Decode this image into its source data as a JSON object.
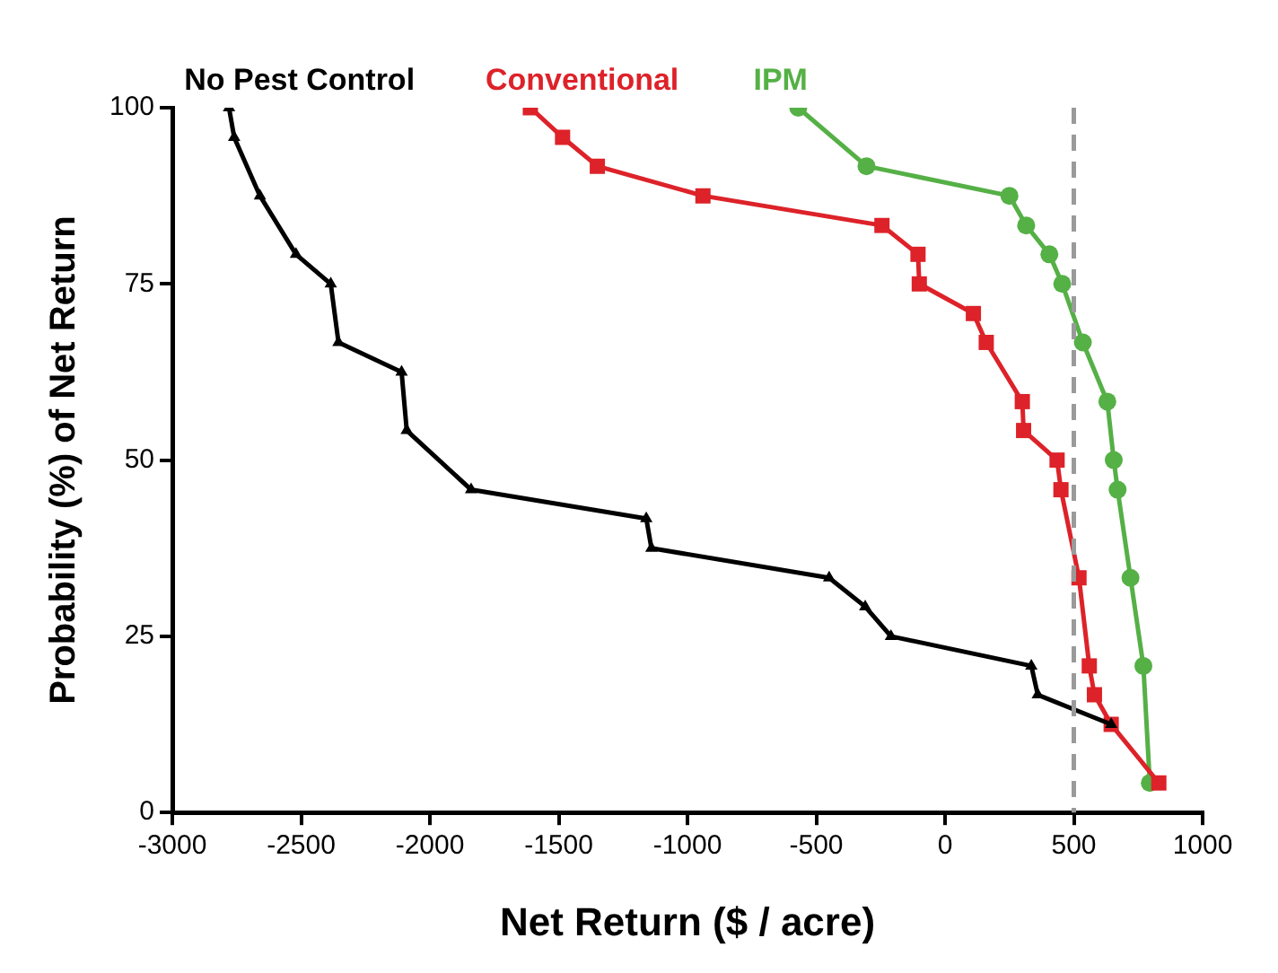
{
  "chart_data": {
    "type": "line",
    "xlabel": "Net Return ($ / acre)",
    "ylabel": "Probability (%) of Net Return",
    "xlim": [
      -3000,
      1000
    ],
    "xticks": [
      -3000,
      -2500,
      -2000,
      -1500,
      -1000,
      -500,
      0,
      500,
      1000
    ],
    "ylim": [
      0,
      100
    ],
    "yticks": [
      0,
      25,
      50,
      75,
      100
    ],
    "grid": false,
    "legend": "top",
    "series": [
      {
        "name": "No Pest Control",
        "color": "#000000",
        "marker": "triangle",
        "x": [
          -2780,
          -2760,
          -2660,
          -2520,
          -2385,
          -2355,
          -2110,
          -2090,
          -1840,
          -1160,
          -1140,
          -450,
          -310,
          -210,
          335,
          360,
          645
        ],
        "values": [
          100,
          95.8,
          87.5,
          79.2,
          75,
          66.7,
          62.5,
          54.2,
          45.8,
          41.7,
          37.5,
          33.3,
          29.2,
          25,
          20.8,
          16.7,
          12.5
        ]
      },
      {
        "name": "Conventional",
        "color": "#dd2229",
        "marker": "square",
        "x": [
          -1610,
          -1485,
          -1350,
          -940,
          -245,
          -105,
          -100,
          110,
          160,
          300,
          305,
          435,
          450,
          520,
          560,
          580,
          645,
          830
        ],
        "values": [
          100,
          95.8,
          91.7,
          87.5,
          83.3,
          79.2,
          75,
          70.8,
          66.7,
          58.3,
          54.2,
          50,
          45.8,
          33.3,
          20.8,
          16.7,
          12.5,
          4.2
        ]
      },
      {
        "name": "IPM",
        "color": "#55b046",
        "marker": "circle",
        "x": [
          -570,
          -305,
          250,
          315,
          405,
          455,
          535,
          630,
          655,
          670,
          720,
          770,
          795
        ],
        "values": [
          100,
          91.7,
          87.5,
          83.3,
          79.2,
          75,
          66.7,
          58.3,
          50,
          45.8,
          33.3,
          20.8,
          4.2
        ]
      }
    ],
    "ref_lines": [
      {
        "axis": "x",
        "value": 500,
        "color": "#9a9a9a",
        "line_style": "dashed"
      }
    ]
  }
}
